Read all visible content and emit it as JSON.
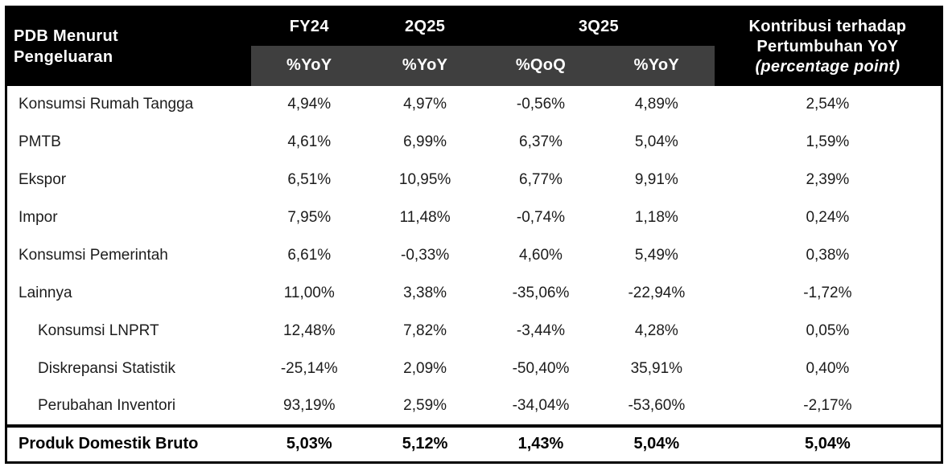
{
  "colors": {
    "green": "#31A64F",
    "header_gray": "#3F3F3F",
    "header_black": "#000000",
    "value_text": "#1C1C1C"
  },
  "header": {
    "row_label_line1": "PDB Menurut",
    "row_label_line2": "Pengeluaran",
    "period_fy24": "FY24",
    "period_2q25": "2Q25",
    "period_3q25": "3Q25",
    "metric_fy24": "%YoY",
    "metric_2q25": "%YoY",
    "metric_3q25_qoq": "%QoQ",
    "metric_3q25_yoy": "%YoY",
    "contribution_line1": "Kontribusi terhadap",
    "contribution_line2": "Pertumbuhan YoY",
    "contribution_line3": "(percentage point)"
  },
  "rows": [
    {
      "label": "Konsumsi Rumah Tangga",
      "indent": false,
      "values": [
        "4,94%",
        "4,97%",
        "-0,56%",
        "4,89%",
        "2,54%"
      ]
    },
    {
      "label": "PMTB",
      "indent": false,
      "values": [
        "4,61%",
        "6,99%",
        "6,37%",
        "5,04%",
        "1,59%"
      ]
    },
    {
      "label": "Ekspor",
      "indent": false,
      "values": [
        "6,51%",
        "10,95%",
        "6,77%",
        "9,91%",
        "2,39%"
      ]
    },
    {
      "label": "Impor",
      "indent": false,
      "values": [
        "7,95%",
        "11,48%",
        "-0,74%",
        "1,18%",
        "0,24%"
      ]
    },
    {
      "label": "Konsumsi Pemerintah",
      "indent": false,
      "values": [
        "6,61%",
        "-0,33%",
        "4,60%",
        "5,49%",
        "0,38%"
      ]
    },
    {
      "label": "Lainnya",
      "indent": false,
      "values": [
        "11,00%",
        "3,38%",
        "-35,06%",
        "-22,94%",
        "-1,72%"
      ]
    },
    {
      "label": "Konsumsi LNPRT",
      "indent": true,
      "values": [
        "12,48%",
        "7,82%",
        "-3,44%",
        "4,28%",
        "0,05%"
      ]
    },
    {
      "label": "Diskrepansi Statistik",
      "indent": true,
      "values": [
        "-25,14%",
        "2,09%",
        "-50,40%",
        "35,91%",
        "0,40%"
      ]
    },
    {
      "label": "Perubahan Inventori",
      "indent": true,
      "values": [
        "93,19%",
        "2,59%",
        "-34,04%",
        "-53,60%",
        "-2,17%"
      ]
    }
  ],
  "total_row": {
    "label": "Produk Domestik Bruto",
    "values": [
      "5,03%",
      "5,12%",
      "1,43%",
      "5,04%",
      "5,04%"
    ]
  },
  "chart_data": {
    "type": "table",
    "title": "PDB Menurut Pengeluaran",
    "columns": [
      "PDB Menurut Pengeluaran",
      "FY24 %YoY",
      "2Q25 %YoY",
      "3Q25 %QoQ",
      "3Q25 %YoY",
      "Kontribusi terhadap Pertumbuhan YoY (percentage point)"
    ],
    "rows": [
      [
        "Konsumsi Rumah Tangga",
        "4,94%",
        "4,97%",
        "-0,56%",
        "4,89%",
        "2,54%"
      ],
      [
        "PMTB",
        "4,61%",
        "6,99%",
        "6,37%",
        "5,04%",
        "1,59%"
      ],
      [
        "Ekspor",
        "6,51%",
        "10,95%",
        "6,77%",
        "9,91%",
        "2,39%"
      ],
      [
        "Impor",
        "7,95%",
        "11,48%",
        "-0,74%",
        "1,18%",
        "0,24%"
      ],
      [
        "Konsumsi Pemerintah",
        "6,61%",
        "-0,33%",
        "4,60%",
        "5,49%",
        "0,38%"
      ],
      [
        "Lainnya",
        "11,00%",
        "3,38%",
        "-35,06%",
        "-22,94%",
        "-1,72%"
      ],
      [
        "Konsumsi LNPRT",
        "12,48%",
        "7,82%",
        "-3,44%",
        "4,28%",
        "0,05%"
      ],
      [
        "Diskrepansi Statistik",
        "-25,14%",
        "2,09%",
        "-50,40%",
        "35,91%",
        "0,40%"
      ],
      [
        "Perubahan Inventori",
        "93,19%",
        "2,59%",
        "-34,04%",
        "-53,60%",
        "-2,17%"
      ],
      [
        "Produk Domestik Bruto",
        "5,03%",
        "5,12%",
        "1,43%",
        "5,04%",
        "5,04%"
      ]
    ]
  }
}
